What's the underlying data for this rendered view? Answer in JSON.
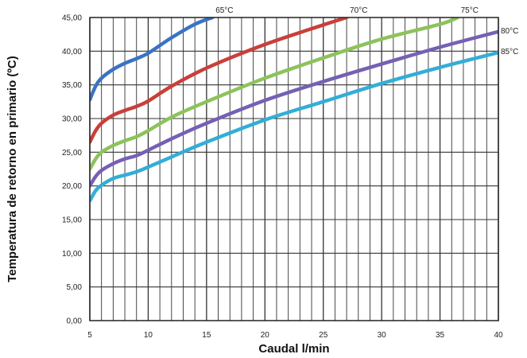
{
  "chart_data": {
    "type": "line",
    "title": "",
    "xlabel": "Caudal l/min",
    "ylabel": "Temperatura de retorno en primario (ºC)",
    "xlim": [
      5,
      40
    ],
    "ylim": [
      0,
      45
    ],
    "x_ticks": [
      5,
      10,
      15,
      20,
      25,
      30,
      35,
      40
    ],
    "x_tick_labels": [
      "5",
      "10",
      "15",
      "20",
      "25",
      "30",
      "35",
      "40"
    ],
    "y_ticks": [
      0,
      5,
      10,
      15,
      20,
      25,
      30,
      35,
      40,
      45
    ],
    "y_tick_labels": [
      "0,00",
      "5,00",
      "10,00",
      "15,00",
      "20,00",
      "25,00",
      "30,00",
      "35,00",
      "40,00",
      "45,00"
    ],
    "grid": true,
    "series": [
      {
        "name": "65°C",
        "color": "#3a73c4",
        "x": [
          5,
          5.5,
          6,
          7,
          8,
          9,
          10,
          12,
          14,
          15.5
        ],
        "y": [
          32.8,
          34.8,
          36.0,
          37.3,
          38.2,
          38.9,
          39.7,
          42.0,
          44.0,
          45.0
        ]
      },
      {
        "name": "70°C",
        "color": "#c8403a",
        "x": [
          5,
          5.5,
          6,
          7,
          8,
          9,
          10,
          12,
          15,
          20,
          25,
          27
        ],
        "y": [
          26.5,
          28.2,
          29.3,
          30.5,
          31.2,
          31.8,
          32.6,
          34.8,
          37.5,
          41.0,
          43.9,
          45.0
        ]
      },
      {
        "name": "75°C",
        "color": "#8cc35a",
        "x": [
          5,
          5.5,
          6,
          7,
          8,
          9,
          10,
          12,
          15,
          20,
          25,
          30,
          35,
          36.5
        ],
        "y": [
          22.5,
          24.0,
          25.0,
          26.0,
          26.7,
          27.3,
          28.2,
          30.2,
          32.5,
          36.0,
          39.0,
          41.8,
          44.0,
          45.0
        ]
      },
      {
        "name": "80°C",
        "color": "#7560b5",
        "x": [
          5,
          5.5,
          6,
          7,
          8,
          9,
          10,
          12,
          15,
          20,
          25,
          30,
          35,
          40
        ],
        "y": [
          20.0,
          21.4,
          22.3,
          23.3,
          24.0,
          24.5,
          25.3,
          27.0,
          29.3,
          32.7,
          35.5,
          38.1,
          40.6,
          42.9
        ]
      },
      {
        "name": "85°C",
        "color": "#33aed6",
        "x": [
          5,
          5.5,
          6,
          7,
          8,
          9,
          10,
          12,
          15,
          20,
          25,
          30,
          35,
          40
        ],
        "y": [
          17.8,
          19.3,
          20.1,
          21.1,
          21.6,
          22.1,
          22.8,
          24.3,
          26.5,
          29.8,
          32.5,
          35.2,
          37.6,
          39.8
        ]
      }
    ]
  }
}
